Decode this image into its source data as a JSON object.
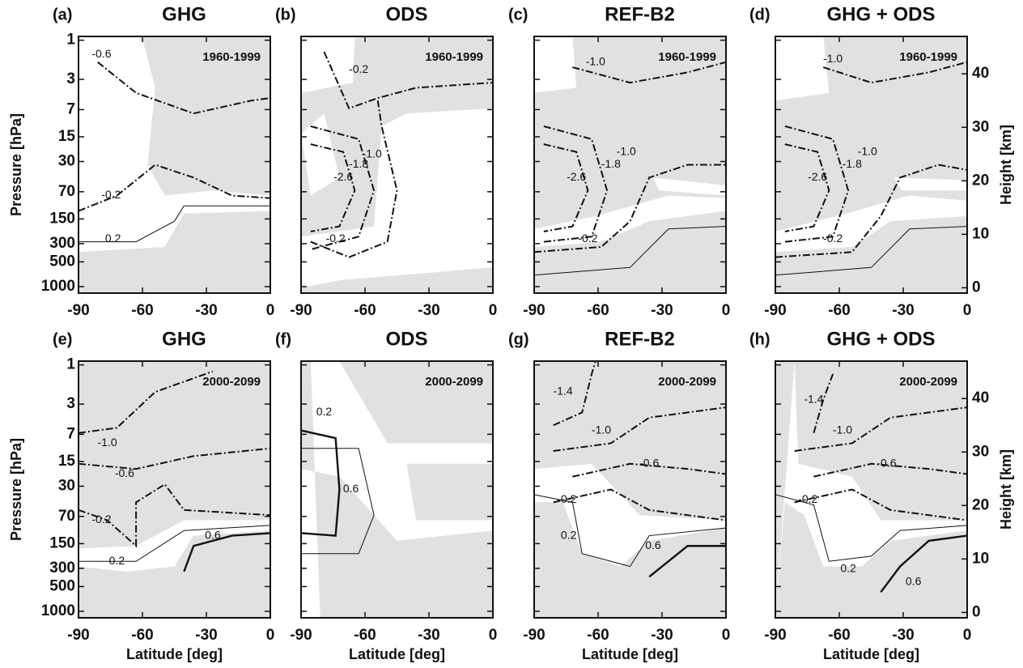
{
  "chart_data": [
    {
      "type": "contour",
      "panel": "(a)",
      "title": "GHG",
      "period": "1960-1999",
      "ylabel": "Pressure [hPa]",
      "xlim": [
        -90,
        0
      ],
      "xticks": [
        -90,
        -60,
        -30,
        0
      ],
      "ylim": [
        1200,
        0.9
      ],
      "yscale": "log",
      "yticks": [
        1,
        3,
        7,
        15,
        30,
        70,
        150,
        300,
        500,
        1000
      ],
      "contour_labels": [
        "-0.6",
        "-0.2",
        "0.2"
      ]
    },
    {
      "type": "contour",
      "panel": "(b)",
      "title": "ODS",
      "period": "1960-1999",
      "xlim": [
        -90,
        0
      ],
      "xticks": [
        -90,
        -60,
        -30,
        0
      ],
      "ylim": [
        1200,
        0.9
      ],
      "yscale": "log",
      "yticks": [
        1,
        3,
        7,
        15,
        30,
        70,
        150,
        300,
        500,
        1000
      ],
      "contour_labels": [
        "-0.2",
        "-2.6",
        "-1.8",
        "-1.0",
        "-0.2"
      ]
    },
    {
      "type": "contour",
      "panel": "(c)",
      "title": "REF-B2",
      "period": "1960-1999",
      "xlim": [
        -90,
        0
      ],
      "xticks": [
        -90,
        -60,
        -30,
        0
      ],
      "ylim": [
        1200,
        0.9
      ],
      "yscale": "log",
      "yticks": [
        1,
        3,
        7,
        15,
        30,
        70,
        150,
        300,
        500,
        1000
      ],
      "contour_labels": [
        "-1.0",
        "-2.6",
        "-1.8",
        "-1.0",
        "-0.2"
      ]
    },
    {
      "type": "contour",
      "panel": "(d)",
      "title": "GHG + ODS",
      "period": "1960-1999",
      "y2label": "Height [km]",
      "xlim": [
        -90,
        0
      ],
      "xticks": [
        -90,
        -60,
        -30,
        0
      ],
      "ylim": [
        1200,
        0.9
      ],
      "yscale": "log",
      "yticks": [
        1,
        3,
        7,
        15,
        30,
        70,
        150,
        300,
        500,
        1000
      ],
      "y2lim": [
        -1,
        47
      ],
      "y2ticks": [
        0,
        10,
        20,
        30,
        40
      ],
      "contour_labels": [
        "-1.0",
        "-2.6",
        "-1.8",
        "-1.0",
        "-0.2"
      ]
    },
    {
      "type": "contour",
      "panel": "(e)",
      "title": "GHG",
      "period": "2000-2099",
      "ylabel": "Pressure [hPa]",
      "xlabel": "Latitude [deg]",
      "xlim": [
        -90,
        0
      ],
      "xticks": [
        -90,
        -60,
        -30,
        0
      ],
      "ylim": [
        1200,
        0.9
      ],
      "yscale": "log",
      "yticks": [
        1,
        3,
        7,
        15,
        30,
        70,
        150,
        300,
        500,
        1000
      ],
      "contour_labels": [
        "-1.0",
        "-0.6",
        "-0.2",
        "0.2",
        "0.6"
      ]
    },
    {
      "type": "contour",
      "panel": "(f)",
      "title": "ODS",
      "period": "2000-2099",
      "xlabel": "Latitude [deg]",
      "xlim": [
        -90,
        0
      ],
      "xticks": [
        -90,
        -60,
        -30,
        0
      ],
      "ylim": [
        1200,
        0.9
      ],
      "yscale": "log",
      "yticks": [
        1,
        3,
        7,
        15,
        30,
        70,
        150,
        300,
        500,
        1000
      ],
      "contour_labels": [
        "0.2",
        "0.6"
      ]
    },
    {
      "type": "contour",
      "panel": "(g)",
      "title": "REF-B2",
      "period": "2000-2099",
      "xlabel": "Latitude [deg]",
      "xlim": [
        -90,
        0
      ],
      "xticks": [
        -90,
        -60,
        -30,
        0
      ],
      "ylim": [
        1200,
        0.9
      ],
      "yscale": "log",
      "yticks": [
        1,
        3,
        7,
        15,
        30,
        70,
        150,
        300,
        500,
        1000
      ],
      "contour_labels": [
        "-1.4",
        "-1.0",
        "-0.6",
        "-0.2",
        "0.2",
        "0.6"
      ]
    },
    {
      "type": "contour",
      "panel": "(h)",
      "title": "GHG + ODS",
      "period": "2000-2099",
      "xlabel": "Latitude [deg]",
      "y2label": "Height [km]",
      "xlim": [
        -90,
        0
      ],
      "xticks": [
        -90,
        -60,
        -30,
        0
      ],
      "ylim": [
        1200,
        0.9
      ],
      "yscale": "log",
      "yticks": [
        1,
        3,
        7,
        15,
        30,
        70,
        150,
        300,
        500,
        1000
      ],
      "y2lim": [
        -1,
        47
      ],
      "y2ticks": [
        0,
        10,
        20,
        30,
        40
      ],
      "contour_labels": [
        "-1.4",
        "-1.0",
        "-0.6",
        "-0.2",
        "0.2",
        "0.6"
      ]
    }
  ]
}
